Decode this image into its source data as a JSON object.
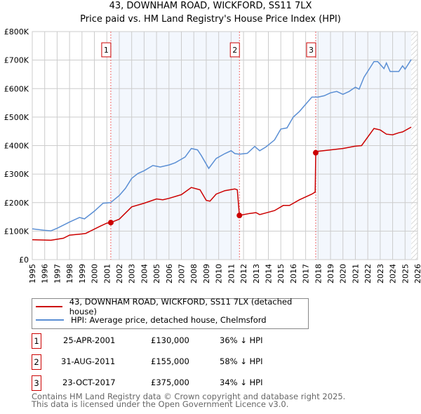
{
  "chart_data": {
    "type": "line",
    "title": "43, DOWNHAM ROAD, WICKFORD, SS11 7LX",
    "subtitle": "Price paid vs. HM Land Registry's House Price Index (HPI)",
    "xlim": [
      1995,
      2026
    ],
    "ylim": [
      0,
      800000
    ],
    "y_ticks": [
      {
        "v": 0,
        "label": "£0"
      },
      {
        "v": 100000,
        "label": "£100K"
      },
      {
        "v": 200000,
        "label": "£200K"
      },
      {
        "v": 300000,
        "label": "£300K"
      },
      {
        "v": 400000,
        "label": "£400K"
      },
      {
        "v": 500000,
        "label": "£500K"
      },
      {
        "v": 600000,
        "label": "£600K"
      },
      {
        "v": 700000,
        "label": "£700K"
      },
      {
        "v": 800000,
        "label": "£800K"
      }
    ],
    "x_ticks": [
      "1995",
      "1996",
      "1997",
      "1998",
      "1999",
      "2000",
      "2001",
      "2002",
      "2003",
      "2004",
      "2005",
      "2006",
      "2007",
      "2008",
      "2009",
      "2010",
      "2011",
      "2012",
      "2013",
      "2014",
      "2015",
      "2016",
      "2017",
      "2018",
      "2019",
      "2020",
      "2021",
      "2022",
      "2023",
      "2024",
      "2025",
      "2026"
    ],
    "grid": true,
    "shaded_ranges": [
      [
        2001.32,
        2011.67
      ],
      [
        2017.81,
        2025.5
      ]
    ],
    "hatched_from": 2025.5,
    "series": [
      {
        "name": "43, DOWNHAM ROAD, WICKFORD, SS11 7LX (detached house)",
        "color": "#cc0000",
        "x": [
          1995,
          1996.5,
          1997.5,
          1998,
          1999,
          1999.3,
          2000.5,
          2001,
          2001.32,
          2002,
          2003,
          2004,
          2005,
          2005.5,
          2006,
          2007,
          2007.8,
          2008.5,
          2009,
          2009.3,
          2009.8,
          2010.5,
          2011.3,
          2011.5,
          2011.67,
          2012.5,
          2013,
          2013.3,
          2014.5,
          2015.2,
          2015.7,
          2016.5,
          2017.5,
          2017.77,
          2017.81,
          2018,
          2019,
          2020,
          2021,
          2021.5,
          2022.5,
          2023,
          2023.5,
          2024,
          2024.5,
          2024.8,
          2025.5
        ],
        "y": [
          70000,
          68000,
          75000,
          86000,
          90000,
          92000,
          118000,
          128000,
          130000,
          142000,
          185000,
          198000,
          213000,
          210000,
          215000,
          228000,
          253000,
          245000,
          208000,
          205000,
          230000,
          242000,
          248000,
          245000,
          155000,
          162000,
          165000,
          158000,
          172000,
          190000,
          190000,
          210000,
          230000,
          237000,
          375000,
          380000,
          385000,
          390000,
          398000,
          400000,
          460000,
          455000,
          440000,
          438000,
          445000,
          448000,
          465000
        ]
      },
      {
        "name": "HPI: Average price, detached house, Chelmsford",
        "color": "#5b8fd4",
        "x": [
          1995,
          1996,
          1996.5,
          1997,
          1998,
          1998.8,
          1999.2,
          2000,
          2000.7,
          2001.3,
          2002,
          2002.5,
          2003,
          2003.5,
          2004,
          2004.7,
          2005.3,
          2006,
          2006.5,
          2007.3,
          2007.8,
          2008.3,
          2008.6,
          2009.2,
          2009.8,
          2010.5,
          2011,
          2011.3,
          2011.67,
          2012.3,
          2012.9,
          2013.3,
          2013.8,
          2014.5,
          2015,
          2015.5,
          2016,
          2016.5,
          2017,
          2017.5,
          2018,
          2018.5,
          2019,
          2019.5,
          2020,
          2020.5,
          2021,
          2021.3,
          2021.7,
          2022.5,
          2022.8,
          2023.3,
          2023.5,
          2023.8,
          2024.5,
          2024.8,
          2025,
          2025.5
        ],
        "y": [
          108000,
          103000,
          101000,
          110000,
          132000,
          148000,
          143000,
          170000,
          198000,
          200000,
          225000,
          250000,
          285000,
          302000,
          312000,
          330000,
          325000,
          332000,
          340000,
          360000,
          390000,
          385000,
          365000,
          320000,
          355000,
          372000,
          382000,
          372000,
          370000,
          373000,
          397000,
          382000,
          395000,
          420000,
          458000,
          462000,
          500000,
          520000,
          545000,
          570000,
          570000,
          575000,
          585000,
          590000,
          580000,
          590000,
          605000,
          598000,
          640000,
          695000,
          695000,
          670000,
          690000,
          660000,
          660000,
          680000,
          668000,
          702000
        ]
      }
    ],
    "sales": [
      {
        "num": "1",
        "x": 2001.32,
        "y": 130000,
        "date": "25-APR-2001",
        "price": "£130,000",
        "hpi": "36% ↓ HPI"
      },
      {
        "num": "2",
        "x": 2011.67,
        "y": 155000,
        "date": "31-AUG-2011",
        "price": "£155,000",
        "hpi": "58% ↓ HPI"
      },
      {
        "num": "3",
        "x": 2017.81,
        "y": 375000,
        "date": "23-OCT-2017",
        "price": "£375,000",
        "hpi": "34% ↓ HPI"
      }
    ]
  },
  "footer": {
    "line1": "Contains HM Land Registry data © Crown copyright and database right 2025.",
    "line2": "This data is licensed under the Open Government Licence v3.0."
  }
}
